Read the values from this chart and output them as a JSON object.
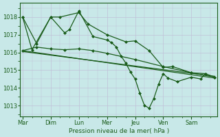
{
  "background_color": "#c8e8e8",
  "grid_major_color": "#c0c0d8",
  "grid_minor_color": "#d8d8e8",
  "line_color": "#1a5c1a",
  "marker_color": "#1a5c1a",
  "xlabel": "Pression niveau de la mer( hPa )",
  "xlabel_color": "#1a5c1a",
  "tick_color": "#1a5c1a",
  "ylim": [
    1012.4,
    1018.8
  ],
  "yticks": [
    1013,
    1014,
    1015,
    1016,
    1017,
    1018
  ],
  "day_labels": [
    "Mar",
    "Dim",
    "Lun",
    "Mer",
    "Jeu",
    "Ven",
    "Sam"
  ],
  "day_positions": [
    0,
    6,
    12,
    18,
    24,
    30,
    36
  ],
  "num_points": 42,
  "series": [
    {
      "name": "line1_top",
      "x": [
        0,
        2,
        6,
        8,
        12,
        14,
        18,
        22,
        24,
        27,
        30,
        32,
        36,
        39
      ],
      "y": [
        1018.0,
        1016.15,
        1018.0,
        1018.0,
        1018.25,
        1017.6,
        1017.0,
        1016.6,
        1016.65,
        1016.1,
        1015.15,
        1015.2,
        1014.85,
        1014.8
      ],
      "marker": "D",
      "ms": 2.0,
      "lw": 0.9,
      "zorder": 4
    },
    {
      "name": "line2_jagged",
      "x": [
        0,
        3,
        6,
        9,
        10,
        12,
        15,
        18,
        19,
        20,
        21,
        22,
        23,
        24,
        25,
        26,
        27,
        28,
        29,
        30,
        31,
        33,
        36,
        38,
        39,
        41
      ],
      "y": [
        1018.0,
        1016.5,
        1018.0,
        1017.1,
        1017.3,
        1018.35,
        1016.9,
        1016.7,
        1016.55,
        1016.3,
        1015.8,
        1015.4,
        1014.9,
        1014.5,
        1013.7,
        1013.0,
        1012.85,
        1013.4,
        1014.2,
        1014.8,
        1014.55,
        1014.35,
        1014.6,
        1014.5,
        1014.8,
        1014.6
      ],
      "marker": "D",
      "ms": 2.0,
      "lw": 0.9,
      "zorder": 4
    },
    {
      "name": "line3_flat_declining",
      "x": [
        0,
        3,
        6,
        9,
        12,
        15,
        18,
        24,
        30,
        36,
        41
      ],
      "y": [
        1016.1,
        1016.3,
        1016.2,
        1016.15,
        1016.2,
        1016.1,
        1015.95,
        1015.6,
        1015.2,
        1014.85,
        1014.6
      ],
      "marker": "D",
      "ms": 2.0,
      "lw": 0.9,
      "zorder": 3
    },
    {
      "name": "line4_straight",
      "x": [
        0,
        41
      ],
      "y": [
        1016.1,
        1014.55
      ],
      "marker": null,
      "ms": 0,
      "lw": 0.9,
      "zorder": 2
    },
    {
      "name": "line5_straight2",
      "x": [
        0,
        41
      ],
      "y": [
        1016.05,
        1014.65
      ],
      "marker": null,
      "ms": 0,
      "lw": 0.9,
      "zorder": 2
    }
  ],
  "figsize": [
    3.2,
    2.0
  ],
  "dpi": 100
}
